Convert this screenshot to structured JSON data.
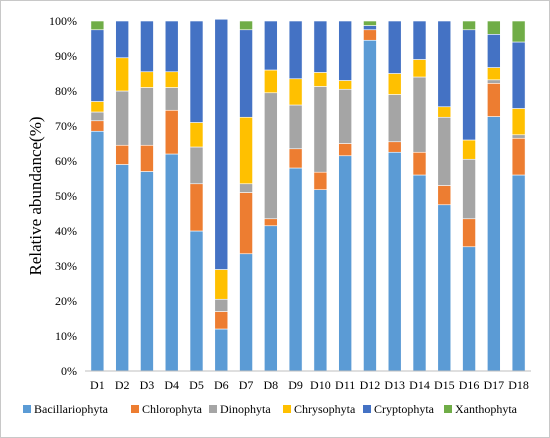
{
  "chart_data": {
    "type": "bar",
    "stacked": true,
    "ylabel": "Relative abundance(%)",
    "xlabel": "",
    "title": "",
    "ylim": [
      0,
      100
    ],
    "y_ticks": [
      "0%",
      "10%",
      "20%",
      "30%",
      "40%",
      "50%",
      "60%",
      "70%",
      "80%",
      "90%",
      "100%"
    ],
    "grid": false,
    "legend_position": "bottom",
    "categories": [
      "D1",
      "D2",
      "D3",
      "D4",
      "D5",
      "D6",
      "D7",
      "D8",
      "D9",
      "D10",
      "D11",
      "D12",
      "D13",
      "D14",
      "D15",
      "D16",
      "D17",
      "D18"
    ],
    "series": [
      {
        "name": "Bacillariophyta",
        "color": "#5b9bd5",
        "values": [
          68.5,
          59,
          57,
          62,
          40,
          12,
          33.5,
          41.5,
          58,
          51.8,
          61.5,
          94.5,
          62.5,
          56,
          47.5,
          35.5,
          72.7,
          56
        ]
      },
      {
        "name": "Chlorophyta",
        "color": "#ed7d31",
        "values": [
          3,
          5.5,
          7.5,
          12.5,
          13.5,
          5,
          17.5,
          2,
          5.5,
          5,
          3.5,
          3,
          3,
          6.5,
          5.5,
          8,
          9.5,
          10.5
        ]
      },
      {
        "name": "Dinophyta",
        "color": "#a5a5a5",
        "values": [
          2.5,
          15.5,
          16.5,
          6.5,
          10.5,
          3.5,
          2.5,
          36,
          12.5,
          24.5,
          15.5,
          0,
          13.5,
          21.5,
          19.5,
          17,
          1,
          1
        ]
      },
      {
        "name": "Chrysophyta",
        "color": "#ffc000",
        "values": [
          3,
          9.5,
          4.5,
          4.5,
          7,
          8.5,
          19,
          6.5,
          7.5,
          4,
          2.5,
          0,
          6,
          5,
          3,
          5.5,
          3.5,
          7.5
        ]
      },
      {
        "name": "Cryptophyta",
        "color": "#4472c4",
        "values": [
          20.5,
          10.5,
          14.5,
          14.5,
          29,
          71.5,
          25,
          14,
          16.5,
          14.7,
          17,
          1.2,
          15,
          11,
          24.5,
          31.5,
          9.5,
          19
        ]
      },
      {
        "name": "Xanthophyta",
        "color": "#70ad47",
        "values": [
          2.5,
          0,
          0,
          0,
          0,
          0,
          2.5,
          0,
          0,
          0,
          0,
          1.3,
          0,
          0,
          0,
          2.5,
          3.8,
          6
        ]
      }
    ]
  }
}
